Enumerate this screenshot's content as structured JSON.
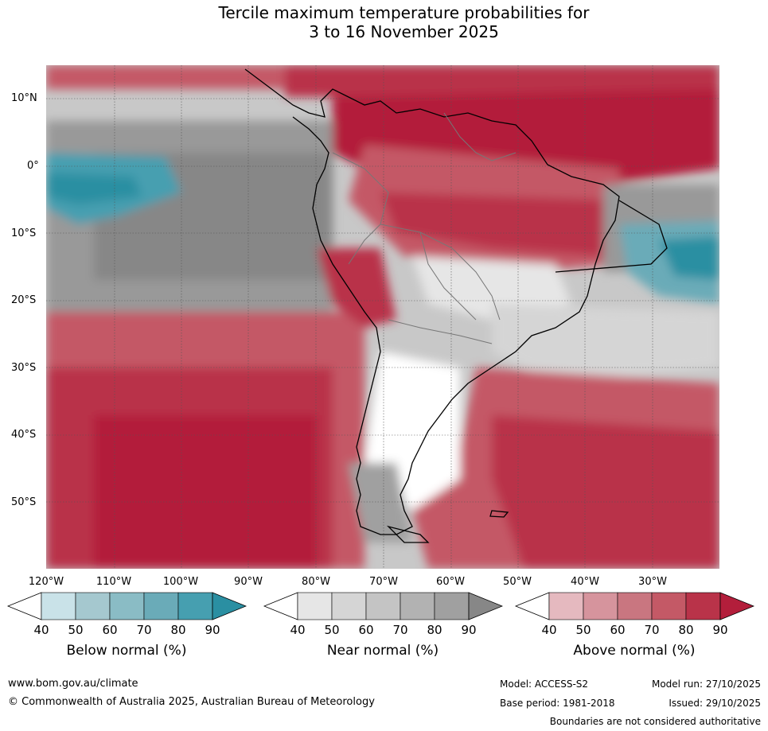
{
  "title": {
    "line1": "Tercile maximum temperature probabilities for",
    "line2": "3 to 16 November 2025"
  },
  "map": {
    "lat_labels": [
      "10°N",
      "0°",
      "10°S",
      "20°S",
      "30°S",
      "40°S",
      "50°S"
    ],
    "lon_labels": [
      "120°W",
      "110°W",
      "100°W",
      "90°W",
      "80°W",
      "70°W",
      "60°W",
      "50°W",
      "40°W",
      "30°W"
    ]
  },
  "legends": {
    "below": {
      "title": "Below normal (%)",
      "ticks": [
        "40",
        "50",
        "60",
        "70",
        "80",
        "90"
      ],
      "colors": [
        "#ffffff",
        "#c9e2e8",
        "#a5c8cf",
        "#8abcc5",
        "#6aabb8",
        "#469fb0",
        "#2a8fa2"
      ]
    },
    "near": {
      "title": "Near normal (%)",
      "ticks": [
        "40",
        "50",
        "60",
        "70",
        "80",
        "90"
      ],
      "colors": [
        "#ffffff",
        "#e6e6e6",
        "#d5d5d5",
        "#c4c4c4",
        "#b2b2b2",
        "#a0a0a0",
        "#878787"
      ]
    },
    "above": {
      "title": "Above normal (%)",
      "ticks": [
        "40",
        "50",
        "60",
        "70",
        "80",
        "90"
      ],
      "colors": [
        "#ffffff",
        "#e5b9bf",
        "#d6949d",
        "#c97680",
        "#c45966",
        "#b93349",
        "#b31e3b"
      ]
    }
  },
  "footer": {
    "url": "www.bom.gov.au/climate",
    "copyright": "© Commonwealth of Australia 2025, Australian Bureau of Meteorology",
    "model": "Model: ACCESS-S2",
    "model_run": "Model run: 27/10/2025",
    "base_period": "Base period: 1981-2018",
    "issued": "Issued: 29/10/2025",
    "disclaimer": "Boundaries are not considered authoritative"
  }
}
